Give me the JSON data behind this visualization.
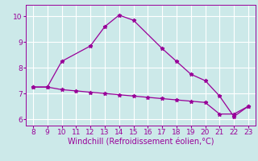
{
  "line1_x": [
    8,
    9,
    10,
    12,
    13,
    14,
    15,
    17,
    18,
    19,
    20,
    21,
    22,
    23
  ],
  "line1_y": [
    7.25,
    7.25,
    8.25,
    8.85,
    9.6,
    10.05,
    9.85,
    8.75,
    8.25,
    7.75,
    7.5,
    6.9,
    6.1,
    6.5
  ],
  "line2_x": [
    8,
    9,
    10,
    11,
    12,
    13,
    14,
    15,
    16,
    17,
    18,
    19,
    20,
    21,
    22,
    23
  ],
  "line2_y": [
    7.25,
    7.25,
    7.15,
    7.1,
    7.05,
    7.0,
    6.95,
    6.9,
    6.85,
    6.8,
    6.75,
    6.7,
    6.65,
    6.2,
    6.2,
    6.5
  ],
  "line_color": "#990099",
  "marker": "*",
  "markersize": 3.5,
  "xlabel": "Windchill (Refroidissement éolien,°C)",
  "xlim": [
    7.5,
    23.5
  ],
  "ylim": [
    5.75,
    10.45
  ],
  "yticks": [
    6,
    7,
    8,
    9,
    10
  ],
  "xticks": [
    8,
    9,
    10,
    11,
    12,
    13,
    14,
    15,
    16,
    17,
    18,
    19,
    20,
    21,
    22,
    23
  ],
  "bg_color": "#cce9e9",
  "grid_color": "#ffffff",
  "label_color": "#990099",
  "linewidth": 0.9,
  "tick_fontsize": 6.5,
  "xlabel_fontsize": 7
}
